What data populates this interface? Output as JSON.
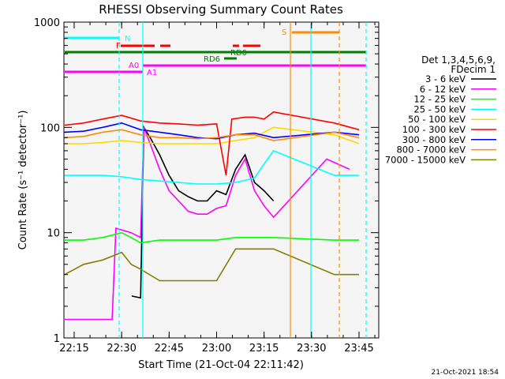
{
  "chart_data": {
    "type": "line",
    "title": "RHESSI Observing Summary Count Rates",
    "xlabel": "Start Time (21-Oct-04 22:11:42)",
    "ylabel": "Count Rate (s⁻¹ detector⁻¹)",
    "yscale": "log",
    "ylim": [
      1,
      1000
    ],
    "xlim_minutes": [
      22.2,
      23.8
    ],
    "x_ticks": [
      "22:15",
      "22:30",
      "22:45",
      "23:00",
      "23:15",
      "23:30",
      "23:45"
    ],
    "y_ticks": [
      "1",
      "10",
      "100",
      "1000"
    ],
    "footer_stamp": "21-Oct-2021 18:54",
    "legend": {
      "title_lines": [
        "Det 1,3,4,5,6,9,",
        "FDecim 1"
      ],
      "entries": [
        {
          "label": "3 - 6 keV",
          "color": "#000000"
        },
        {
          "label": "6 - 12 keV",
          "color": "#ff00ff"
        },
        {
          "label": "12 - 25 keV",
          "color": "#00ff00"
        },
        {
          "label": "25 - 50 keV",
          "color": "#00ffff"
        },
        {
          "label": "50 - 100 keV",
          "color": "#ffd700"
        },
        {
          "label": "100 - 300 keV",
          "color": "#ff0000"
        },
        {
          "label": "300 - 800 keV",
          "color": "#0000ff"
        },
        {
          "label": "800 - 7000 keV",
          "color": "#ff8c00"
        },
        {
          "label": "7000 - 15000 keV",
          "color": "#808000"
        }
      ]
    },
    "flag_bars": [
      {
        "label": "N",
        "color": "#00ffff"
      },
      {
        "label": "F",
        "color": "#ff0000"
      },
      {
        "label": "RD0",
        "color": "#008000"
      },
      {
        "label": "RD6",
        "color": "#008000"
      },
      {
        "label": "S",
        "color": "#ff8c00"
      },
      {
        "label": "A0",
        "color": "#ff00ff"
      },
      {
        "label": "A1",
        "color": "#ff00ff"
      }
    ],
    "series": [
      {
        "name": "3 - 6 keV",
        "color": "#000000",
        "points": [
          [
            22.553,
            2.5
          ],
          [
            22.6,
            2.4
          ],
          [
            22.617,
            100
          ],
          [
            22.65,
            80
          ],
          [
            22.7,
            55
          ],
          [
            22.75,
            35
          ],
          [
            22.8,
            25
          ],
          [
            22.85,
            22
          ],
          [
            22.9,
            20
          ],
          [
            22.95,
            20
          ],
          [
            23.0,
            25
          ],
          [
            23.05,
            23
          ],
          [
            23.1,
            40
          ],
          [
            23.15,
            55
          ],
          [
            23.2,
            30
          ],
          [
            23.25,
            25
          ],
          [
            23.3,
            20
          ]
        ]
      },
      {
        "name": "6 - 12 keV",
        "color": "#ff00ff",
        "points": [
          [
            22.2,
            1.5
          ],
          [
            22.45,
            1.5
          ],
          [
            22.47,
            11
          ],
          [
            22.55,
            10
          ],
          [
            22.6,
            9
          ],
          [
            22.617,
            100
          ],
          [
            22.65,
            70
          ],
          [
            22.7,
            40
          ],
          [
            22.75,
            25
          ],
          [
            22.8,
            20
          ],
          [
            22.85,
            16
          ],
          [
            22.9,
            15
          ],
          [
            22.95,
            15
          ],
          [
            23.0,
            17
          ],
          [
            23.05,
            18
          ],
          [
            23.1,
            35
          ],
          [
            23.15,
            50
          ],
          [
            23.2,
            25
          ],
          [
            23.25,
            18
          ],
          [
            23.3,
            14
          ],
          [
            23.58,
            50
          ],
          [
            23.7,
            40
          ]
        ]
      },
      {
        "name": "12 - 25 keV",
        "color": "#00ff00",
        "points": [
          [
            22.2,
            8.5
          ],
          [
            22.3,
            8.5
          ],
          [
            22.4,
            9
          ],
          [
            22.5,
            10
          ],
          [
            22.55,
            9
          ],
          [
            22.6,
            8
          ],
          [
            22.7,
            8.5
          ],
          [
            22.8,
            8.5
          ],
          [
            22.9,
            8.5
          ],
          [
            23.0,
            8.5
          ],
          [
            23.1,
            9
          ],
          [
            23.2,
            9
          ],
          [
            23.3,
            9
          ],
          [
            23.62,
            8.5
          ],
          [
            23.75,
            8.5
          ]
        ]
      },
      {
        "name": "25 - 50 keV",
        "color": "#00ffff",
        "points": [
          [
            22.2,
            35
          ],
          [
            22.3,
            35
          ],
          [
            22.4,
            35
          ],
          [
            22.5,
            34
          ],
          [
            22.6,
            32
          ],
          [
            22.7,
            31
          ],
          [
            22.8,
            30
          ],
          [
            22.9,
            29
          ],
          [
            23.0,
            29
          ],
          [
            23.1,
            30
          ],
          [
            23.2,
            33
          ],
          [
            23.25,
            45
          ],
          [
            23.3,
            60
          ],
          [
            23.62,
            35
          ],
          [
            23.75,
            35
          ]
        ]
      },
      {
        "name": "50 - 100 keV",
        "color": "#ffd700",
        "points": [
          [
            22.2,
            70
          ],
          [
            22.3,
            70
          ],
          [
            22.4,
            72
          ],
          [
            22.5,
            75
          ],
          [
            22.6,
            72
          ],
          [
            22.7,
            70
          ],
          [
            22.8,
            70
          ],
          [
            22.9,
            70
          ],
          [
            23.0,
            70
          ],
          [
            23.1,
            75
          ],
          [
            23.2,
            80
          ],
          [
            23.25,
            90
          ],
          [
            23.3,
            100
          ],
          [
            23.62,
            85
          ],
          [
            23.75,
            70
          ]
        ]
      },
      {
        "name": "100 - 300 keV",
        "color": "#ff0000",
        "points": [
          [
            22.2,
            105
          ],
          [
            22.3,
            110
          ],
          [
            22.4,
            120
          ],
          [
            22.5,
            130
          ],
          [
            22.6,
            115
          ],
          [
            22.7,
            110
          ],
          [
            22.8,
            108
          ],
          [
            22.9,
            105
          ],
          [
            23.0,
            108
          ],
          [
            23.05,
            35
          ],
          [
            23.08,
            120
          ],
          [
            23.15,
            125
          ],
          [
            23.2,
            125
          ],
          [
            23.25,
            120
          ],
          [
            23.3,
            140
          ],
          [
            23.62,
            110
          ],
          [
            23.75,
            95
          ]
        ]
      },
      {
        "name": "300 - 800 keV",
        "color": "#0000ff",
        "points": [
          [
            22.2,
            90
          ],
          [
            22.3,
            92
          ],
          [
            22.4,
            100
          ],
          [
            22.5,
            110
          ],
          [
            22.6,
            95
          ],
          [
            22.7,
            90
          ],
          [
            22.8,
            85
          ],
          [
            22.9,
            80
          ],
          [
            23.0,
            78
          ],
          [
            23.1,
            85
          ],
          [
            23.2,
            88
          ],
          [
            23.3,
            80
          ],
          [
            23.62,
            90
          ],
          [
            23.75,
            85
          ]
        ]
      },
      {
        "name": "800 - 7000 keV",
        "color": "#ff8c00",
        "points": [
          [
            22.2,
            80
          ],
          [
            22.3,
            82
          ],
          [
            22.4,
            90
          ],
          [
            22.5,
            95
          ],
          [
            22.6,
            85
          ],
          [
            22.7,
            80
          ],
          [
            22.8,
            80
          ],
          [
            22.9,
            78
          ],
          [
            23.0,
            80
          ],
          [
            23.1,
            85
          ],
          [
            23.2,
            85
          ],
          [
            23.3,
            75
          ],
          [
            23.62,
            90
          ],
          [
            23.75,
            80
          ]
        ]
      },
      {
        "name": "7000 - 15000 keV",
        "color": "#808000",
        "points": [
          [
            22.2,
            4
          ],
          [
            22.3,
            5
          ],
          [
            22.4,
            5.5
          ],
          [
            22.5,
            6.5
          ],
          [
            22.55,
            5
          ],
          [
            22.6,
            4.5
          ],
          [
            22.7,
            3.5
          ],
          [
            22.8,
            3.5
          ],
          [
            22.9,
            3.5
          ],
          [
            23.0,
            3.5
          ],
          [
            23.1,
            7
          ],
          [
            23.2,
            7
          ],
          [
            23.3,
            7
          ],
          [
            23.62,
            4
          ],
          [
            23.75,
            4
          ]
        ]
      }
    ]
  }
}
